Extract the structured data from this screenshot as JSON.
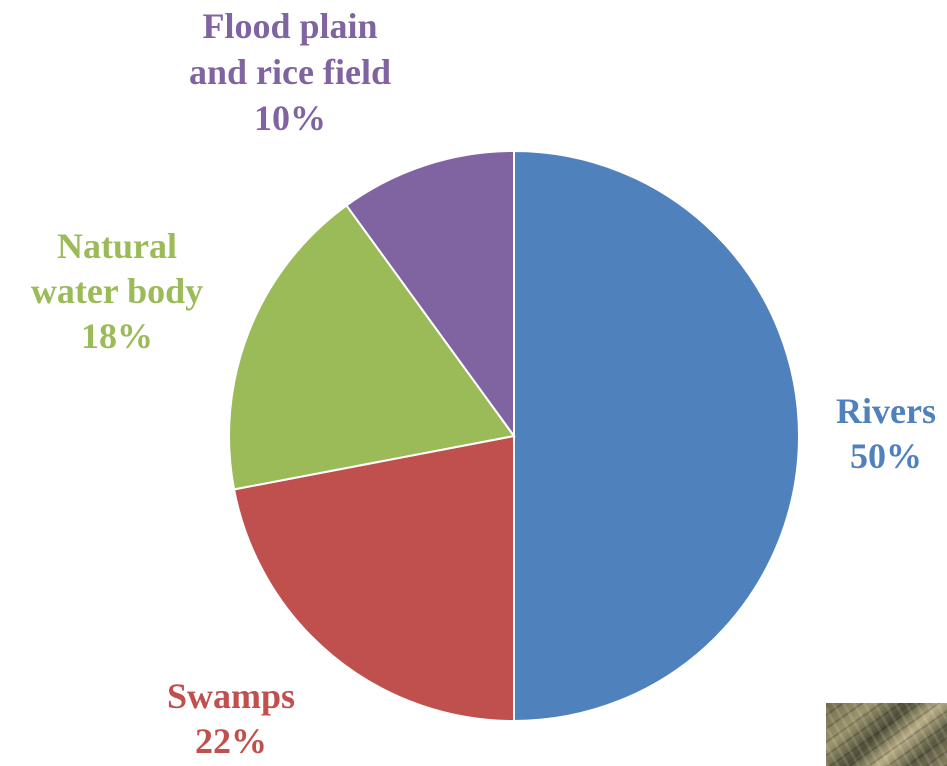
{
  "chart_data": {
    "type": "pie",
    "title": "",
    "slices": [
      {
        "name": "Rivers",
        "value": 50,
        "label_lines": [
          "Rivers",
          "50%"
        ],
        "color": "#4f81bd",
        "label_color": "#4f81bd"
      },
      {
        "name": "Swamps",
        "value": 22,
        "label_lines": [
          "Swamps",
          "22%"
        ],
        "color": "#c0504d",
        "label_color": "#c0504d"
      },
      {
        "name": "Natural water body",
        "value": 18,
        "label_lines": [
          "Natural",
          "water body",
          "18%"
        ],
        "color": "#9bbb59",
        "label_color": "#9bbb59"
      },
      {
        "name": "Flood plain and rice field",
        "value": 10,
        "label_lines": [
          "Flood plain",
          "and rice field",
          "10%"
        ],
        "color": "#8064a2",
        "label_color": "#8064a2"
      }
    ],
    "start_angle_deg": 0,
    "direction": "clockwise",
    "legend": "none",
    "slice_border_color": "#ffffff"
  },
  "photo": {
    "icon": "photo-thumbnail"
  }
}
